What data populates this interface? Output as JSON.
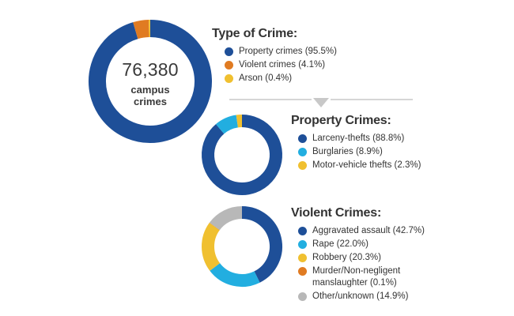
{
  "colors": {
    "dark_blue": "#1e4f98",
    "orange": "#e07b22",
    "yellow": "#f0c030",
    "cyan": "#22aee0",
    "gray": "#b8b8b8",
    "divider": "#c8c8c8"
  },
  "chart_data": [
    {
      "type": "pie",
      "title": "Type of Crime:",
      "center": {
        "total": "76,380",
        "subtitle": "campus crimes"
      },
      "slices": [
        {
          "label": "Property crimes (95.5%)",
          "value": 95.5,
          "color": "#1e4f98"
        },
        {
          "label": "Violent crimes (4.1%)",
          "value": 4.1,
          "color": "#e07b22"
        },
        {
          "label": "Arson (0.4%)",
          "value": 0.4,
          "color": "#f0c030"
        }
      ]
    },
    {
      "type": "pie",
      "title": "Property Crimes:",
      "slices": [
        {
          "label": "Larceny-thefts (88.8%)",
          "value": 88.8,
          "color": "#1e4f98"
        },
        {
          "label": "Burglaries (8.9%)",
          "value": 8.9,
          "color": "#22aee0"
        },
        {
          "label": "Motor-vehicle thefts (2.3%)",
          "value": 2.3,
          "color": "#f0c030"
        }
      ]
    },
    {
      "type": "pie",
      "title": "Violent Crimes:",
      "slices": [
        {
          "label": "Aggravated assault (42.7%)",
          "value": 42.7,
          "color": "#1e4f98"
        },
        {
          "label": "Rape (22.0%)",
          "value": 22.0,
          "color": "#22aee0"
        },
        {
          "label": "Robbery (20.3%)",
          "value": 20.3,
          "color": "#f0c030"
        },
        {
          "label": "Murder/Non-negligent\nmanslaughter (0.1%)",
          "value": 0.1,
          "color": "#e07b22"
        },
        {
          "label": "Other/unknown (14.9%)",
          "value": 14.9,
          "color": "#b8b8b8"
        }
      ]
    }
  ]
}
